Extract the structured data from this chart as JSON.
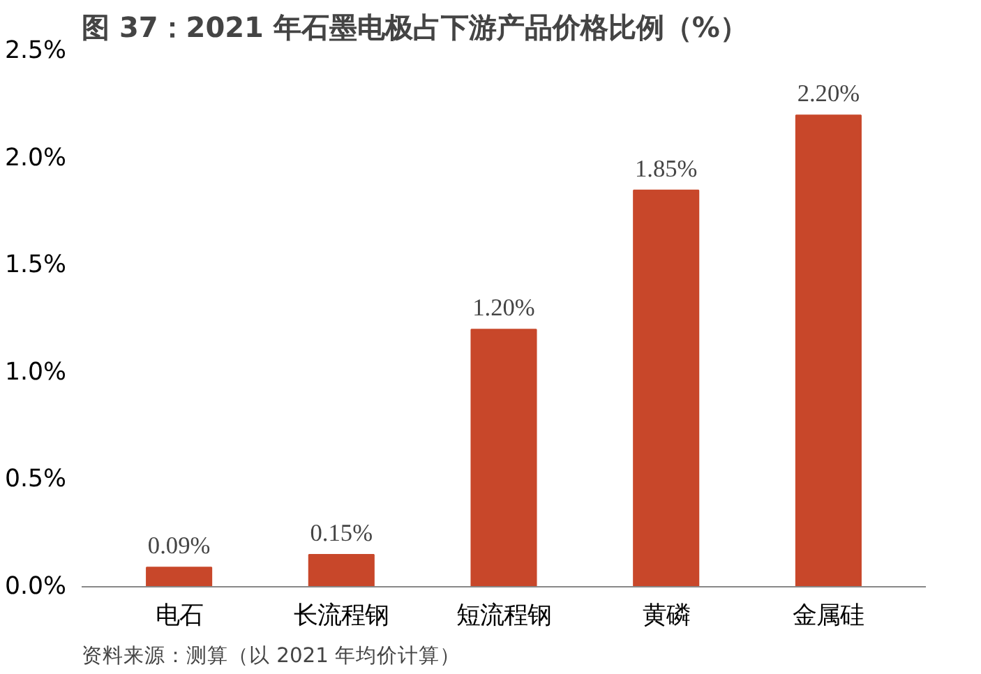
{
  "chart_data": {
    "type": "bar",
    "title": "图 37：2021 年石墨电极占下游产品价格比例（%）",
    "categories": [
      "电石",
      "长流程钢",
      "短流程钢",
      "黄磷",
      "金属硅"
    ],
    "values": [
      0.09,
      0.15,
      1.2,
      1.85,
      2.2
    ],
    "value_labels": [
      "0.09%",
      "0.15%",
      "1.20%",
      "1.85%",
      "2.20%"
    ],
    "color": "#c8472a",
    "ylim": [
      0,
      2.5
    ],
    "yticks": [
      {
        "value": 0,
        "label": "0.0%"
      },
      {
        "value": 0.5,
        "label": "0.5%"
      },
      {
        "value": 1.0,
        "label": "1.0%"
      },
      {
        "value": 1.5,
        "label": "1.5%"
      },
      {
        "value": 2.0,
        "label": "2.0%"
      },
      {
        "value": 2.5,
        "label": "2.5%"
      }
    ],
    "annotations": [
      "资料来源：测算（以 2021 年均价计算）"
    ]
  }
}
